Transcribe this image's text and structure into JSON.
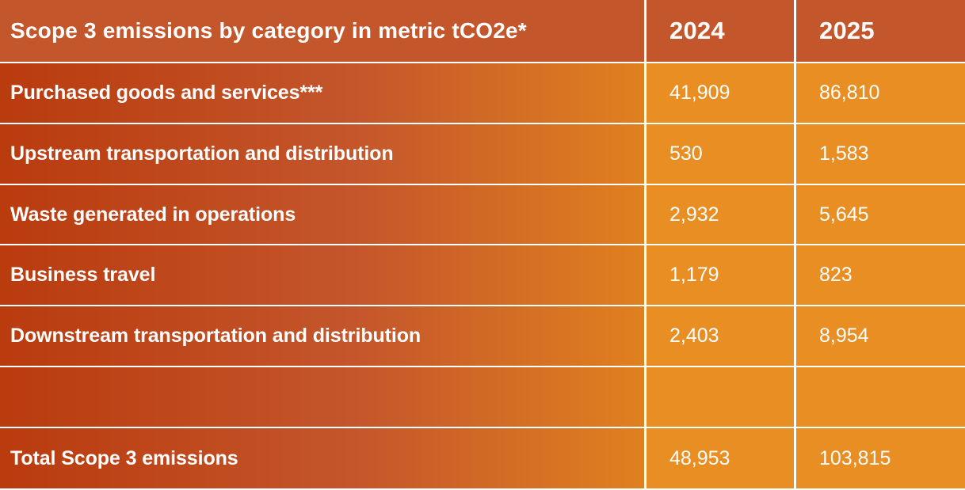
{
  "table": {
    "header": {
      "title": "Scope 3 emissions by category in metric tCO2e*",
      "columns": [
        "2024",
        "2025"
      ]
    },
    "rows": [
      {
        "label": "Purchased goods and services***",
        "values": [
          "41,909",
          "86,810"
        ]
      },
      {
        "label": "Upstream transportation and distribution",
        "values": [
          "530",
          "1,583"
        ]
      },
      {
        "label": "Waste generated in operations",
        "values": [
          "2,932",
          "5,645"
        ]
      },
      {
        "label": "Business travel",
        "values": [
          "1,179",
          "823"
        ]
      },
      {
        "label": "Downstream transportation and distribution",
        "values": [
          "2,403",
          "8,954"
        ]
      },
      {
        "label": "",
        "values": [
          "",
          ""
        ]
      },
      {
        "label": "Total Scope 3 emissions",
        "values": [
          "48,953",
          "103,815"
        ]
      }
    ]
  },
  "colors": {
    "header_bg": "#C4562B",
    "label_gradient_start": "#B93B0E",
    "label_gradient_end": "#E0801F",
    "value_bg": "#E88E23",
    "grid_lines": "#FFFFFF",
    "text": "#FFFFFF"
  }
}
